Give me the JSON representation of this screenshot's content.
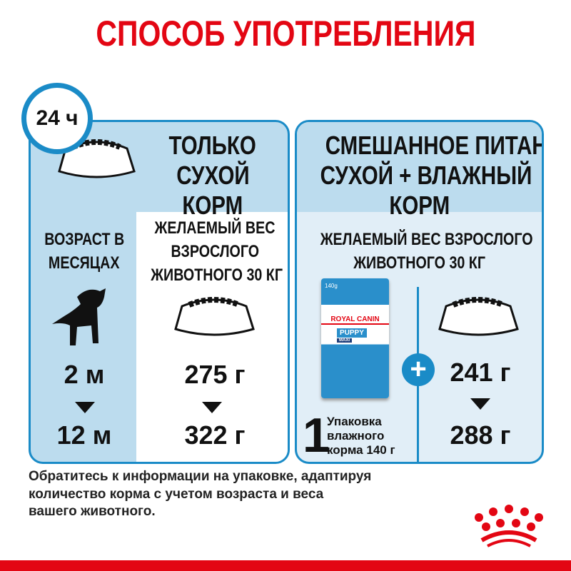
{
  "title": "СПОСОБ УПОТРЕБЛЕНИЯ",
  "clock_label": "24 ч",
  "left": {
    "header": [
      "ТОЛЬКО",
      "СУХОЙ",
      "КОРМ"
    ],
    "age_label": [
      "ВОЗРАСТ В",
      "МЕСЯЦАХ"
    ],
    "weight_label": [
      "ЖЕЛАЕМЫЙ ВЕС",
      "ВЗРОСЛОГО",
      "ЖИВОТНОГО 30 КГ"
    ],
    "age_from": "2 м",
    "age_to": "12 м",
    "amount_from": "275 г",
    "amount_to": "322 г"
  },
  "right": {
    "header": [
      "СМЕШАННОЕ ПИТАНИЕ:",
      "СУХОЙ + ВЛАЖНЫЙ",
      "КОРМ"
    ],
    "weight_label": [
      "ЖЕЛАЕМЫЙ ВЕС ВЗРОСЛОГО",
      "ЖИВОТНОГО 30 КГ"
    ],
    "pouch_count": "1",
    "pouch_text": [
      "Упаковка",
      "влажного",
      "корма 140 г"
    ],
    "pouch": {
      "weight": "140g",
      "brand": "ROYAL CANIN",
      "line": "PUPPY",
      "size": "MAXI"
    },
    "amount_from": "241 г",
    "amount_to": "288 г"
  },
  "footer": [
    "Обратитесь к информации на упаковке, адаптируя",
    "количество корма с учетом возраста и веса",
    "вашего животного."
  ],
  "colors": {
    "brand_red": "#e30613",
    "blue": "#1a8bc7",
    "light_blue": "#bcdcee"
  }
}
